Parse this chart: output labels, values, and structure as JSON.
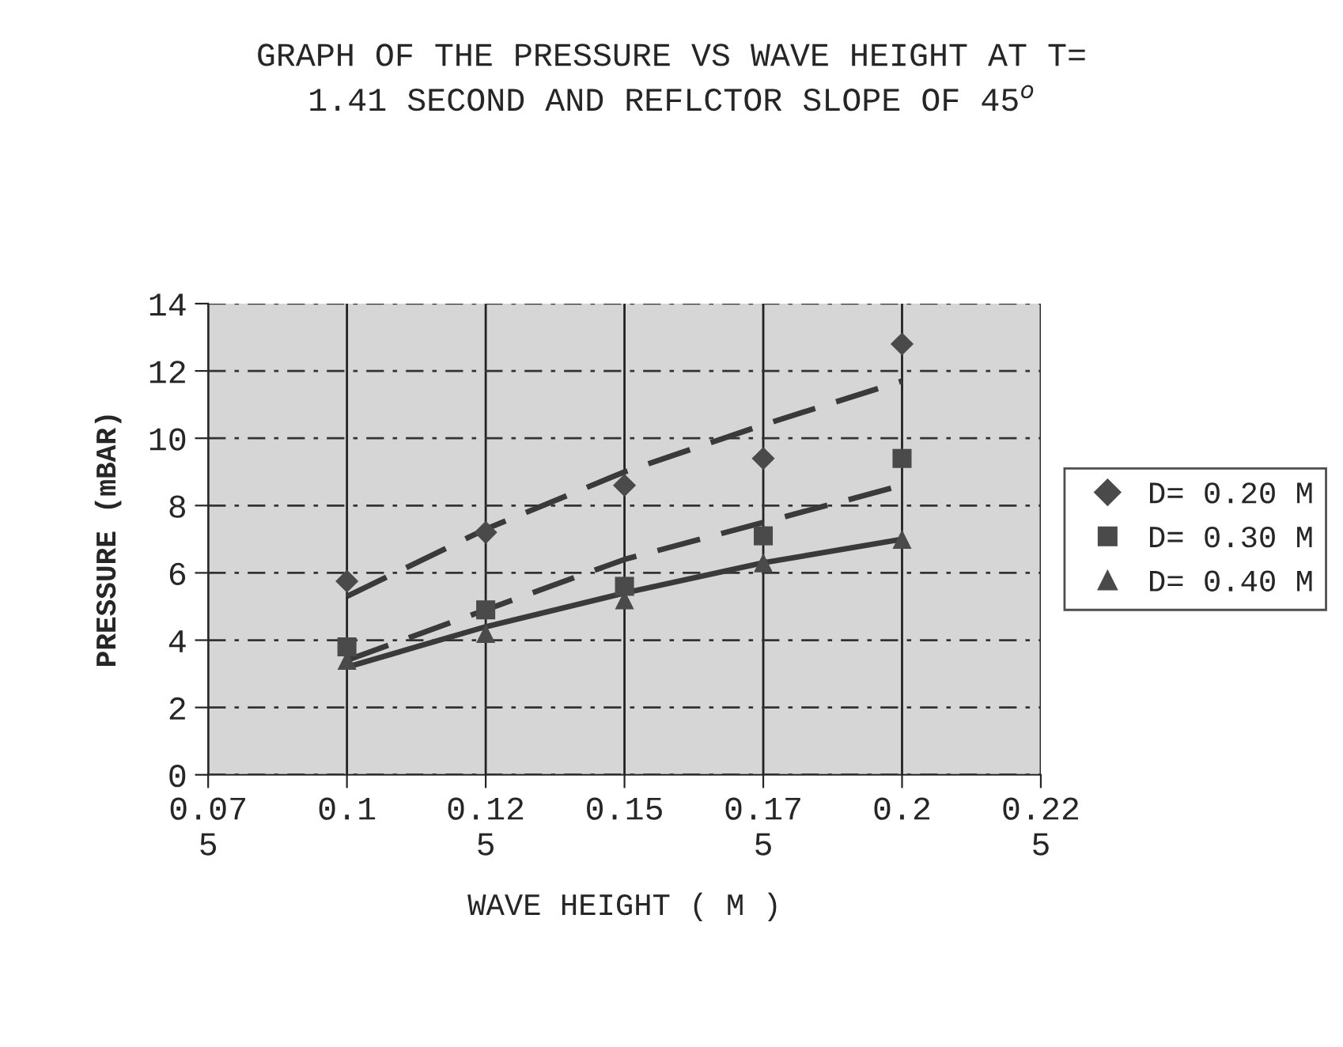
{
  "chart_data": {
    "type": "scatter",
    "title": "GRAPH OF THE PRESSURE VS WAVE HEIGHT AT T=\n1.41 SECOND AND REFLCTOR SLOPE OF 45$^{o}$",
    "xlabel": "WAVE HEIGHT ( M )",
    "ylabel": "PRESSURE (mBAR)",
    "x": [
      0.1,
      0.125,
      0.15,
      0.175,
      0.2
    ],
    "series": [
      {
        "name": "D= 0.20 M",
        "color": "#4a4a4a",
        "marker": "diamond",
        "values": [
          5.75,
          7.2,
          8.6,
          9.4,
          12.8
        ]
      },
      {
        "name": "D= 0.30 M",
        "color": "#4a4a4a",
        "marker": "square",
        "values": [
          3.8,
          4.9,
          5.6,
          7.1,
          9.4
        ]
      },
      {
        "name": "D= 0.40 M",
        "color": "#4a4a4a",
        "marker": "triangle",
        "values": [
          3.4,
          4.2,
          5.2,
          6.3,
          7.0
        ]
      },
      {
        "type": "line",
        "color": "#3a3a3a",
        "line_style": "dashed",
        "x": [
          0.1,
          0.125,
          0.15,
          0.175,
          0.2
        ],
        "values": [
          5.3,
          7.3,
          9.0,
          10.4,
          11.7
        ]
      },
      {
        "type": "line",
        "color": "#3a3a3a",
        "line_style": "dashed",
        "x": [
          0.1,
          0.125,
          0.15,
          0.175,
          0.2
        ],
        "values": [
          3.4,
          4.9,
          6.4,
          7.5,
          8.6
        ]
      },
      {
        "type": "line",
        "color": "#3a3a3a",
        "line_style": "solid",
        "x": [
          0.1,
          0.125,
          0.15,
          0.175,
          0.2
        ],
        "values": [
          3.2,
          4.4,
          5.4,
          6.3,
          7.0
        ]
      }
    ],
    "xlim": [
      0.075,
      0.225
    ],
    "xticks": [
      {
        "value": 0.075,
        "label": "0.07\n5"
      },
      0.1,
      {
        "value": 0.125,
        "label": "0.12\n5"
      },
      0.15,
      {
        "value": 0.175,
        "label": "0.17\n5"
      },
      0.2,
      {
        "value": 0.225,
        "label": "0.22\n5"
      }
    ],
    "ylim": [
      0,
      14
    ],
    "yticks": [
      0,
      2,
      4,
      6,
      8,
      10,
      12,
      14
    ],
    "grid": true,
    "legend": "right"
  }
}
